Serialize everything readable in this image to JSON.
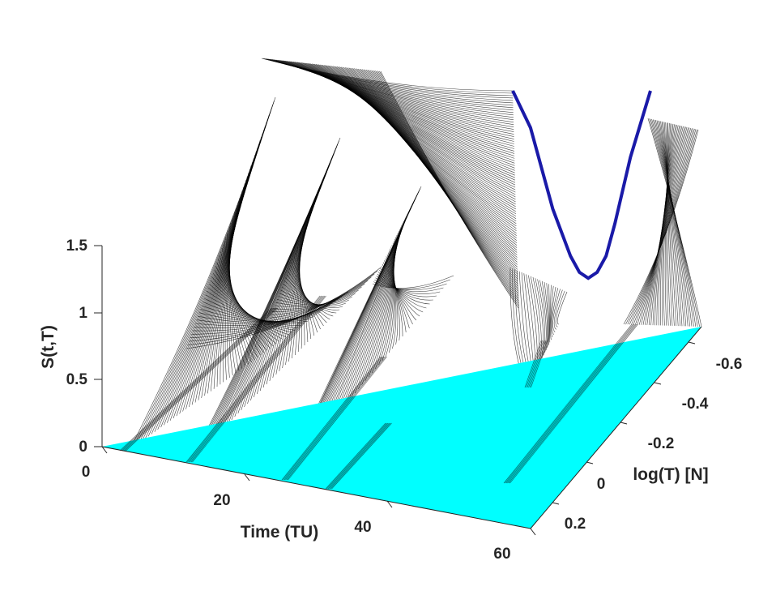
{
  "chart_data": {
    "type": "surface-3d",
    "title": "",
    "xlabel": "Time (TU)",
    "ylabel": "log(T) [N]",
    "zlabel": "S(t,T)",
    "xlim": [
      0,
      60
    ],
    "ylim": [
      -0.7,
      0.25
    ],
    "zlim": [
      0,
      1.5
    ],
    "x_ticks": [
      "0",
      "20",
      "40",
      "60"
    ],
    "y_ticks": [
      "-0.6",
      "-0.4",
      "-0.2",
      "0",
      "0.2"
    ],
    "z_ticks": [
      "0",
      "0.5",
      "1",
      "1.5"
    ],
    "surface_color": "#000000",
    "floor_color": "#00ffff",
    "highlight_curve_color": "#1a1aa8",
    "highlight_curve": {
      "t": 60,
      "logT": [
        -0.68,
        -0.6,
        -0.5,
        -0.42,
        -0.38,
        -0.34,
        -0.3,
        -0.26,
        -0.22,
        -0.15,
        -0.06
      ],
      "S": [
        1.45,
        1.2,
        0.65,
        0.33,
        0.22,
        0.18,
        0.22,
        0.33,
        0.55,
        1.0,
        1.45
      ]
    },
    "grid": false
  }
}
